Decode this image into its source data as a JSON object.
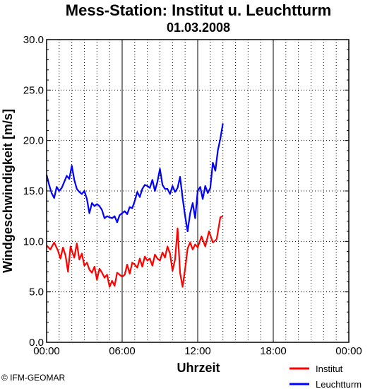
{
  "chart_data": {
    "type": "line",
    "title": "Mess-Station: Institut u. Leuchtturm",
    "subtitle": "01.03.2008",
    "xlabel": "Uhrzeit",
    "ylabel": "Windgeschwindigkeit [m/s]",
    "ylim": [
      0,
      30
    ],
    "xlim": [
      0,
      24
    ],
    "x_ticks": [
      {
        "value": 0,
        "label": "00:00"
      },
      {
        "value": 6,
        "label": "06:00"
      },
      {
        "value": 12,
        "label": "12:00"
      },
      {
        "value": 18,
        "label": "18:00"
      },
      {
        "value": 24,
        "label": "00:00"
      }
    ],
    "y_ticks": [
      {
        "value": 0,
        "label": "0.0"
      },
      {
        "value": 5,
        "label": "5.0"
      },
      {
        "value": 10,
        "label": "10.0"
      },
      {
        "value": 15,
        "label": "15.0"
      },
      {
        "value": 20,
        "label": "20.0"
      },
      {
        "value": 25,
        "label": "25.0"
      },
      {
        "value": 30,
        "label": "30.0"
      }
    ],
    "grid": true,
    "legend_position": "bottom-right",
    "series": [
      {
        "name": "Institut",
        "color": "#ff0000",
        "x": [
          0.0,
          0.3,
          0.6,
          0.9,
          1.1,
          1.3,
          1.5,
          1.7,
          1.9,
          2.0,
          2.2,
          2.4,
          2.6,
          2.8,
          3.0,
          3.2,
          3.4,
          3.6,
          3.8,
          4.0,
          4.2,
          4.4,
          4.6,
          4.8,
          5.0,
          5.2,
          5.4,
          5.6,
          5.8,
          6.0,
          6.2,
          6.4,
          6.6,
          6.8,
          7.0,
          7.2,
          7.4,
          7.6,
          7.8,
          8.0,
          8.2,
          8.4,
          8.6,
          8.8,
          9.0,
          9.2,
          9.4,
          9.6,
          9.8,
          10.0,
          10.2,
          10.4,
          10.6,
          10.8,
          11.0,
          11.2,
          11.4,
          11.6,
          11.8,
          12.0,
          12.3,
          12.6,
          12.9,
          13.2,
          13.5,
          13.8,
          14.0
        ],
        "y": [
          9.6,
          9.2,
          9.9,
          9.1,
          8.3,
          9.4,
          8.6,
          7.0,
          9.5,
          9.1,
          8.4,
          9.8,
          8.2,
          8.8,
          7.6,
          7.9,
          7.2,
          6.9,
          7.5,
          6.2,
          7.3,
          6.9,
          6.4,
          6.7,
          5.5,
          6.1,
          5.6,
          6.9,
          6.7,
          6.5,
          6.7,
          7.7,
          6.8,
          7.9,
          7.7,
          7.4,
          8.3,
          7.5,
          8.5,
          8.1,
          8.3,
          7.6,
          8.7,
          8.3,
          8.1,
          8.9,
          8.4,
          9.5,
          8.8,
          7.1,
          8.2,
          11.3,
          6.9,
          5.5,
          7.3,
          9.3,
          9.9,
          9.2,
          9.7,
          9.4,
          10.5,
          9.5,
          11.0,
          9.9,
          10.2,
          12.4,
          12.5
        ]
      },
      {
        "name": "Leuchtturm",
        "color": "#0000ff",
        "x": [
          0.0,
          0.2,
          0.4,
          0.6,
          0.8,
          1.0,
          1.2,
          1.4,
          1.6,
          1.8,
          2.0,
          2.2,
          2.4,
          2.6,
          2.8,
          3.0,
          3.2,
          3.4,
          3.6,
          3.8,
          4.0,
          4.2,
          4.4,
          4.6,
          4.8,
          5.0,
          5.2,
          5.4,
          5.6,
          5.8,
          6.0,
          6.2,
          6.4,
          6.6,
          6.8,
          7.0,
          7.2,
          7.4,
          7.6,
          7.8,
          8.0,
          8.2,
          8.4,
          8.6,
          8.8,
          9.0,
          9.2,
          9.4,
          9.6,
          9.8,
          10.0,
          10.2,
          10.4,
          10.6,
          10.8,
          11.0,
          11.2,
          11.4,
          11.6,
          11.8,
          12.0,
          12.2,
          12.4,
          12.6,
          12.8,
          13.0,
          13.2,
          13.4,
          13.6,
          13.8,
          14.0
        ],
        "y": [
          16.6,
          15.6,
          14.8,
          14.3,
          15.4,
          15.0,
          15.3,
          15.9,
          16.5,
          16.2,
          17.5,
          16.1,
          15.2,
          14.9,
          14.7,
          15.0,
          14.2,
          12.8,
          13.8,
          13.5,
          13.7,
          13.5,
          13.1,
          12.3,
          12.5,
          12.4,
          12.3,
          12.5,
          11.9,
          12.6,
          12.8,
          13.0,
          12.7,
          13.4,
          13.3,
          14.0,
          14.9,
          14.4,
          15.2,
          15.6,
          15.5,
          15.3,
          16.1,
          15.0,
          15.9,
          17.2,
          15.6,
          15.2,
          15.2,
          14.7,
          15.5,
          14.9,
          15.3,
          16.4,
          14.3,
          12.5,
          11.0,
          12.8,
          13.8,
          12.3,
          15.0,
          15.4,
          14.2,
          15.5,
          14.8,
          15.3,
          17.8,
          17.0,
          19.0,
          20.2,
          21.7
        ]
      }
    ]
  },
  "credit": "© IFM-GEOMAR"
}
